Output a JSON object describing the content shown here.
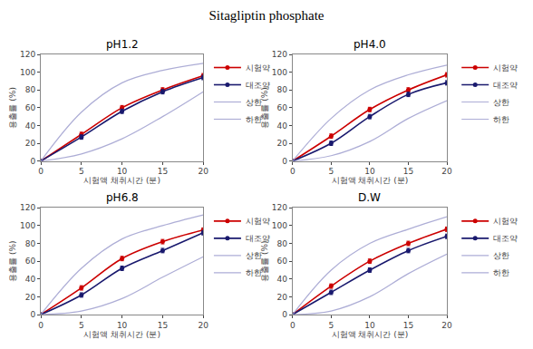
{
  "title": "Sitagliptin phosphate",
  "chart_data": [
    {
      "type": "line",
      "title": "pH1.2",
      "x": [
        0,
        5,
        10,
        15,
        20
      ],
      "xlabel": "시험액 채취시간 (분)",
      "ylabel": "용출률 (%)",
      "xlim": [
        0,
        20
      ],
      "ylim": [
        0,
        120
      ],
      "xticks": [
        0,
        5,
        10,
        15,
        20
      ],
      "yticks": [
        0,
        20,
        40,
        60,
        80,
        100,
        120
      ],
      "grid": false,
      "legend": "right",
      "series": [
        {
          "name": "시험약",
          "color": "#cc0000",
          "marker": "circle",
          "line_style": "solid",
          "values": [
            0,
            30,
            60,
            80,
            96
          ],
          "errors": [
            null,
            2.5,
            2.5,
            2.5,
            2.5
          ]
        },
        {
          "name": "대조약",
          "color": "#1a1a6e",
          "marker": "circle",
          "line_style": "solid",
          "values": [
            0,
            27,
            56,
            78,
            94
          ],
          "errors": [
            null,
            2.5,
            2.5,
            2.5,
            2.5
          ]
        },
        {
          "name": "상한",
          "color": "#9999cc",
          "line_style": "solid",
          "values": [
            0,
            55,
            88,
            102,
            110
          ]
        },
        {
          "name": "하한",
          "color": "#9999cc",
          "line_style": "solid",
          "values": [
            0,
            8,
            25,
            50,
            78
          ]
        }
      ]
    },
    {
      "type": "line",
      "title": "pH4.0",
      "x": [
        0,
        5,
        10,
        15,
        20
      ],
      "xlabel": "시험액 채취시간 (분)",
      "ylabel": "용출률 (%)",
      "xlim": [
        0,
        20
      ],
      "ylim": [
        0,
        120
      ],
      "xticks": [
        0,
        5,
        10,
        15,
        20
      ],
      "yticks": [
        0,
        20,
        40,
        60,
        80,
        100,
        120
      ],
      "grid": false,
      "legend": "right",
      "series": [
        {
          "name": "시험약",
          "color": "#cc0000",
          "marker": "circle",
          "line_style": "solid",
          "values": [
            0,
            28,
            58,
            80,
            97
          ],
          "errors": [
            null,
            2.5,
            2.5,
            2.5,
            2.5
          ]
        },
        {
          "name": "대조약",
          "color": "#1a1a6e",
          "marker": "circle",
          "line_style": "solid",
          "values": [
            0,
            20,
            50,
            75,
            88
          ],
          "errors": [
            null,
            2.5,
            2.5,
            2.5,
            2.5
          ]
        },
        {
          "name": "상한",
          "color": "#9999cc",
          "line_style": "solid",
          "values": [
            0,
            48,
            80,
            97,
            108
          ]
        },
        {
          "name": "하한",
          "color": "#9999cc",
          "line_style": "solid",
          "values": [
            0,
            6,
            22,
            48,
            68
          ]
        }
      ]
    },
    {
      "type": "line",
      "title": "pH6.8",
      "x": [
        0,
        5,
        10,
        15,
        20
      ],
      "xlabel": "시험액 채취시간 (분)",
      "ylabel": "용출률 (%)",
      "xlim": [
        0,
        20
      ],
      "ylim": [
        0,
        120
      ],
      "xticks": [
        0,
        5,
        10,
        15,
        20
      ],
      "yticks": [
        0,
        20,
        40,
        60,
        80,
        100,
        120
      ],
      "grid": false,
      "legend": "right",
      "series": [
        {
          "name": "시험약",
          "color": "#cc0000",
          "marker": "circle",
          "line_style": "solid",
          "values": [
            0,
            30,
            63,
            82,
            95
          ],
          "errors": [
            null,
            2.5,
            2.5,
            2.5,
            2.5
          ]
        },
        {
          "name": "대조약",
          "color": "#1a1a6e",
          "marker": "circle",
          "line_style": "solid",
          "values": [
            0,
            22,
            52,
            72,
            92
          ],
          "errors": [
            null,
            2.5,
            2.5,
            2.5,
            2.5
          ]
        },
        {
          "name": "상한",
          "color": "#9999cc",
          "line_style": "solid",
          "values": [
            0,
            52,
            85,
            100,
            112
          ]
        },
        {
          "name": "하한",
          "color": "#9999cc",
          "line_style": "solid",
          "values": [
            0,
            4,
            18,
            42,
            65
          ]
        }
      ]
    },
    {
      "type": "line",
      "title": "D.W",
      "x": [
        0,
        5,
        10,
        15,
        20
      ],
      "xlabel": "시험액 채취시간 (분)",
      "ylabel": "용출률 (%)",
      "xlim": [
        0,
        20
      ],
      "ylim": [
        0,
        120
      ],
      "xticks": [
        0,
        5,
        10,
        15,
        20
      ],
      "yticks": [
        0,
        20,
        40,
        60,
        80,
        100,
        120
      ],
      "grid": false,
      "legend": "right",
      "series": [
        {
          "name": "시험약",
          "color": "#cc0000",
          "marker": "circle",
          "line_style": "solid",
          "values": [
            0,
            32,
            60,
            80,
            96
          ],
          "errors": [
            null,
            2.5,
            2.5,
            2.5,
            2.5
          ]
        },
        {
          "name": "대조약",
          "color": "#1a1a6e",
          "marker": "circle",
          "line_style": "solid",
          "values": [
            0,
            25,
            50,
            72,
            88
          ],
          "errors": [
            null,
            2.5,
            2.5,
            2.5,
            2.5
          ]
        },
        {
          "name": "상한",
          "color": "#9999cc",
          "line_style": "solid",
          "values": [
            0,
            50,
            80,
            96,
            110
          ]
        },
        {
          "name": "하한",
          "color": "#9999cc",
          "line_style": "solid",
          "values": [
            0,
            4,
            20,
            46,
            68
          ]
        }
      ]
    }
  ]
}
